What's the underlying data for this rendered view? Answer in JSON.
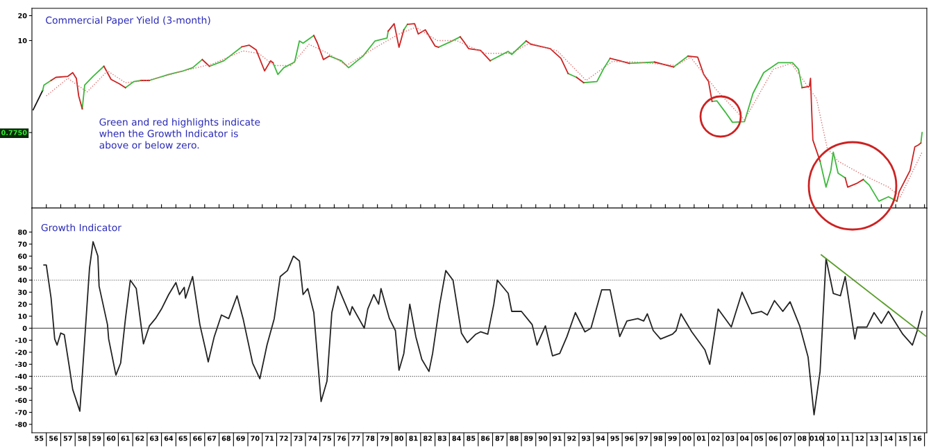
{
  "chart_data": [
    {
      "type": "line",
      "log": true,
      "tick_labels": "y",
      "line_style": "solid",
      "xlim": [
        "1955",
        "2017-03"
      ],
      "xticks": [
        {
          "value": "1956",
          "label": null
        },
        {
          "value": "1957",
          "label": null
        },
        {
          "value": "1958",
          "label": null
        },
        {
          "value": "1959",
          "label": null
        },
        {
          "value": "1960",
          "label": null
        },
        {
          "value": "1961",
          "label": null
        },
        {
          "value": "1962",
          "label": null
        },
        {
          "value": "1963",
          "label": null
        },
        {
          "value": "1964",
          "label": null
        },
        {
          "value": "1965",
          "label": null
        },
        {
          "value": "1966",
          "label": null
        },
        {
          "value": "1967",
          "label": null
        },
        {
          "value": "1968",
          "label": null
        },
        {
          "value": "1969",
          "label": null
        },
        {
          "value": "1970",
          "label": null
        },
        {
          "value": "1971",
          "label": null
        },
        {
          "value": "1972",
          "label": null
        },
        {
          "value": "1973",
          "label": null
        },
        {
          "value": "1974",
          "label": null
        },
        {
          "value": "1975",
          "label": null
        },
        {
          "value": "1976",
          "label": null
        },
        {
          "value": "1977",
          "label": null
        },
        {
          "value": "1978",
          "label": null
        },
        {
          "value": "1979",
          "label": null
        },
        {
          "value": "1980",
          "label": null
        },
        {
          "value": "1981",
          "label": null
        },
        {
          "value": "1982",
          "label": null
        },
        {
          "value": "1983",
          "label": null
        },
        {
          "value": "1984",
          "label": null
        },
        {
          "value": "1985",
          "label": null
        },
        {
          "value": "1986",
          "label": null
        },
        {
          "value": "1987",
          "label": null
        },
        {
          "value": "1988",
          "label": null
        },
        {
          "value": "1989",
          "label": null
        },
        {
          "value": "1990",
          "label": null
        },
        {
          "value": "1991",
          "label": null
        },
        {
          "value": "1992",
          "label": null
        },
        {
          "value": "1993",
          "label": null
        },
        {
          "value": "1994",
          "label": null
        },
        {
          "value": "1995",
          "label": null
        },
        {
          "value": "1996",
          "label": null
        },
        {
          "value": "1997",
          "label": null
        },
        {
          "value": "1998",
          "label": null
        },
        {
          "value": "1999",
          "label": null
        },
        {
          "value": "2000",
          "label": null
        },
        {
          "value": "2001",
          "label": null
        },
        {
          "value": "2002",
          "label": null
        },
        {
          "value": "2003",
          "label": null
        },
        {
          "value": "2004",
          "label": null
        },
        {
          "value": "2005",
          "label": null
        },
        {
          "value": "2006",
          "label": null
        },
        {
          "value": "2007",
          "label": null
        },
        {
          "value": "2008",
          "label": null
        },
        {
          "value": "2009",
          "label": null
        },
        {
          "value": "2010",
          "label": null
        },
        {
          "value": "2011",
          "label": null
        },
        {
          "value": "2012",
          "label": null
        },
        {
          "value": "2013",
          "label": null
        },
        {
          "value": "2014",
          "label": null
        },
        {
          "value": "2015",
          "label": null
        },
        {
          "value": "2016",
          "label": null
        },
        {
          "value": "2017",
          "label": null
        }
      ],
      "ylim": [
        0.095,
        24.5
      ],
      "yticks": [
        20,
        10,
        {
          "value": 0.775,
          "label": "0.7750"
        }
      ],
      "annotations": [
        "Commercial Paper Yield (3-month)",
        "Green and red highlights indicate\nwhen the Growth Indicator is\nabove or below zero."
      ],
      "series": [
        {
          "color": "#111111",
          "x": [
            "1955-02",
            "1955-10"
          ],
          "values": [
            1.46,
            2.5
          ]
        },
        {
          "color": "#3cb83c",
          "x": [
            "1955-10",
            "1955-11",
            "1956-05",
            null,
            "1958-07",
            "1958-09",
            "1959-04",
            "1960-01",
            null,
            "1961-07",
            "1962-02",
            "1962-08",
            null,
            "1963-03",
            "1964-07",
            "1965-07",
            "1966-03",
            "1966-11",
            null,
            "1967-05",
            "1968-05",
            "1969-08",
            null,
            "1971-10",
            "1972-02",
            "1972-07",
            "1973-04",
            "1973-08",
            "1973-11",
            "1974-08",
            null,
            "1975-09",
            "1976-07",
            "1977-01",
            "1978-01",
            "1978-11",
            "1979-09",
            "1979-10",
            null,
            "1980-11",
            "1981-02",
            null,
            "1983-04",
            "1984-02",
            "1984-10",
            null,
            "1986-11",
            "1988-02",
            "1988-05",
            "1989-05",
            null,
            "1992-04",
            "1992-11",
            null,
            "1993-05",
            "1994-04",
            "1994-10",
            "1995-03",
            null,
            "1996-07",
            "1998-04",
            null,
            "1999-08",
            "2000-08",
            null,
            "2002-04",
            "2002-08",
            "2003-03",
            "2003-09",
            "2004-07",
            "2005-02",
            "2005-11",
            "2006-11",
            "2007-11",
            "2008-04",
            "2008-07",
            null,
            "2009-10",
            "2010-03",
            "2010-07",
            "2010-09",
            "2011-01",
            "2011-07",
            null,
            "2012-10",
            "2013-03",
            "2013-11",
            "2014-07",
            "2015-02",
            null,
            "2016-10",
            "2016-11"
          ],
          "values": [
            2.5,
            2.9,
            3.3,
            null,
            1.5,
            2.9,
            3.7,
            4.9,
            null,
            2.7,
            3.2,
            3.3,
            null,
            3.3,
            3.9,
            4.3,
            4.7,
            5.9,
            null,
            4.9,
            5.7,
            8.4,
            null,
            5.4,
            3.9,
            4.7,
            5.5,
            9.9,
            9.3,
            11.5,
            null,
            6.5,
            5.7,
            4.7,
            6.5,
            9.9,
            10.7,
            13,
            null,
            13.5,
            15.7,
            null,
            8.3,
            9.7,
            11.1,
            null,
            5.7,
            7.4,
            6.8,
            9.9,
            null,
            4.0,
            3.6,
            null,
            3.1,
            3.2,
            4.7,
            6.1,
            null,
            5.3,
            5.5,
            null,
            4.8,
            6.5,
            null,
            1.84,
            1.87,
            1.37,
            1.03,
            1.05,
            2.3,
            4.1,
            5.4,
            5.4,
            4.5,
            2.7,
            null,
            0.35,
            0.17,
            0.27,
            0.45,
            0.25,
            0.22,
            null,
            0.21,
            0.18,
            0.115,
            0.13,
            0.115,
            null,
            0.58,
            0.775
          ]
        },
        {
          "color": "#cc2222",
          "x": [
            "1956-05",
            "1956-09",
            "1957-07",
            "1957-11",
            "1958-02",
            "1958-04",
            "1958-07",
            null,
            "1960-01",
            "1960-07",
            "1961-02",
            "1961-07",
            null,
            "1962-08",
            "1963-03",
            null,
            "1966-11",
            "1967-05",
            null,
            "1969-08",
            "1970-02",
            "1970-08",
            "1971-03",
            "1971-08",
            "1971-10",
            null,
            "1974-08",
            "1974-11",
            "1975-04",
            "1975-09",
            null,
            "1979-10",
            "1980-03",
            "1980-07",
            "1980-11",
            null,
            "1981-02",
            "1981-08",
            "1981-11",
            "1982-05",
            "1983-01",
            "1983-04",
            null,
            "1984-10",
            "1985-01",
            "1985-05",
            "1986-03",
            "1986-11",
            null,
            "1989-05",
            "1989-09",
            "1991-01",
            "1991-10",
            "1992-04",
            null,
            "1992-11",
            "1993-05",
            null,
            "1995-03",
            "1995-11",
            "1996-07",
            null,
            "1998-04",
            "1999-08",
            null,
            "2000-08",
            "2001-04",
            "2001-09",
            "2002-01",
            "2002-04",
            null,
            "2008-07",
            "2009-01",
            "2009-02",
            "2009-03",
            "2009-04",
            "2009-10",
            null,
            "2011-07",
            "2011-09",
            "2012-05",
            "2012-10",
            null,
            "2015-02",
            "2015-04",
            "2016-01",
            "2016-05",
            "2016-08",
            "2016-10"
          ],
          "values": [
            3.3,
            3.6,
            3.7,
            4.1,
            3.5,
            2.15,
            1.5,
            null,
            4.9,
            3.4,
            3.0,
            2.7,
            null,
            3.3,
            3.3,
            null,
            5.9,
            4.9,
            null,
            8.4,
            8.8,
            7.7,
            4.3,
            5.7,
            5.4,
            null,
            11.5,
            9.3,
            5.9,
            6.5,
            null,
            13,
            16,
            8.3,
            13.5,
            null,
            15.7,
            16,
            12,
            13.5,
            8.6,
            8.3,
            null,
            11.1,
            9.7,
            8.0,
            7.6,
            5.7,
            null,
            9.9,
            9.0,
            8.0,
            6.1,
            4.0,
            null,
            3.6,
            3.1,
            null,
            6.1,
            5.7,
            5.3,
            null,
            5.5,
            4.8,
            null,
            6.5,
            6.3,
            3.9,
            3.2,
            1.84,
            null,
            2.7,
            2.8,
            3.5,
            1.46,
            0.63,
            0.35,
            null,
            0.22,
            0.17,
            0.19,
            0.21,
            null,
            0.115,
            0.15,
            0.27,
            0.52,
            0.55,
            0.58
          ]
        },
        {
          "color": "#e07070",
          "line_style": "dotted",
          "x": [
            "1956-01",
            "1957-07",
            "1958-11",
            "1960-04",
            "1961-07",
            "1963-01",
            "1966-01",
            "1967-07",
            "1969-09",
            "1970-10",
            "1971-11",
            "1973-01",
            "1974-04",
            "1975-08",
            "1976-11",
            "1979-01",
            "1980-07",
            "1981-09",
            "1983-03",
            "1984-07",
            "1986-07",
            "1988-04",
            "1989-08",
            "1991-07",
            "1993-07",
            "1995-05",
            "1997-01",
            "1999-10",
            "2000-10",
            "2002-08",
            "2004-07",
            "2006-07",
            "2007-10",
            "2009-07",
            "2010-04",
            "2011-01",
            "2012-07",
            "2014-07",
            "2015-05",
            "2016-11"
          ],
          "values": [
            2.15,
            3.5,
            2.4,
            4.3,
            3.1,
            3.3,
            4.5,
            5.2,
            7.5,
            7.0,
            5.0,
            5.0,
            9.0,
            7.0,
            5.0,
            8.5,
            12,
            14.5,
            10,
            10,
            7,
            7,
            9.3,
            7.5,
            3.3,
            5.6,
            5.5,
            5.0,
            6.3,
            2.5,
            1.1,
            4.5,
            5.3,
            2.0,
            0.5,
            0.35,
            0.25,
            0.17,
            0.13,
            0.45
          ]
        }
      ]
    },
    {
      "type": "line",
      "line_style": "solid",
      "xlim": [
        "1955",
        "2017-03"
      ],
      "xticks": [
        {
          "value": "1955-07",
          "label": "55"
        },
        {
          "value": "1956",
          "label": null
        },
        {
          "value": "1956-07",
          "label": "56"
        },
        {
          "value": "1957",
          "label": null
        },
        {
          "value": "1957-07",
          "label": "57"
        },
        {
          "value": "1958",
          "label": null
        },
        {
          "value": "1958-07",
          "label": "58"
        },
        {
          "value": "1959",
          "label": null
        },
        {
          "value": "1959-07",
          "label": "59"
        },
        {
          "value": "1960",
          "label": null
        },
        {
          "value": "1960-07",
          "label": "60"
        },
        {
          "value": "1961",
          "label": null
        },
        {
          "value": "1961-07",
          "label": "61"
        },
        {
          "value": "1962",
          "label": null
        },
        {
          "value": "1962-07",
          "label": "62"
        },
        {
          "value": "1963",
          "label": null
        },
        {
          "value": "1963-07",
          "label": "63"
        },
        {
          "value": "1964",
          "label": null
        },
        {
          "value": "1964-07",
          "label": "64"
        },
        {
          "value": "1965",
          "label": null
        },
        {
          "value": "1965-07",
          "label": "65"
        },
        {
          "value": "1966",
          "label": null
        },
        {
          "value": "1966-07",
          "label": "66"
        },
        {
          "value": "1967",
          "label": null
        },
        {
          "value": "1967-07",
          "label": "67"
        },
        {
          "value": "1968",
          "label": null
        },
        {
          "value": "1968-07",
          "label": "68"
        },
        {
          "value": "1969",
          "label": null
        },
        {
          "value": "1969-07",
          "label": "69"
        },
        {
          "value": "1970",
          "label": null
        },
        {
          "value": "1970-07",
          "label": "70"
        },
        {
          "value": "1971",
          "label": null
        },
        {
          "value": "1971-07",
          "label": "71"
        },
        {
          "value": "1972",
          "label": null
        },
        {
          "value": "1972-07",
          "label": "72"
        },
        {
          "value": "1973",
          "label": null
        },
        {
          "value": "1973-07",
          "label": "73"
        },
        {
          "value": "1974",
          "label": null
        },
        {
          "value": "1974-07",
          "label": "74"
        },
        {
          "value": "1975",
          "label": null
        },
        {
          "value": "1975-07",
          "label": "75"
        },
        {
          "value": "1976",
          "label": null
        },
        {
          "value": "1976-07",
          "label": "76"
        },
        {
          "value": "1977",
          "label": null
        },
        {
          "value": "1977-07",
          "label": "77"
        },
        {
          "value": "1978",
          "label": null
        },
        {
          "value": "1978-07",
          "label": "78"
        },
        {
          "value": "1979",
          "label": null
        },
        {
          "value": "1979-07",
          "label": "79"
        },
        {
          "value": "1980",
          "label": null
        },
        {
          "value": "1980-07",
          "label": "80"
        },
        {
          "value": "1981",
          "label": null
        },
        {
          "value": "1981-07",
          "label": "81"
        },
        {
          "value": "1982",
          "label": null
        },
        {
          "value": "1982-07",
          "label": "82"
        },
        {
          "value": "1983",
          "label": null
        },
        {
          "value": "1983-07",
          "label": "83"
        },
        {
          "value": "1984",
          "label": null
        },
        {
          "value": "1984-07",
          "label": "84"
        },
        {
          "value": "1985",
          "label": null
        },
        {
          "value": "1985-07",
          "label": "85"
        },
        {
          "value": "1986",
          "label": null
        },
        {
          "value": "1986-07",
          "label": "86"
        },
        {
          "value": "1987",
          "label": null
        },
        {
          "value": "1987-07",
          "label": "87"
        },
        {
          "value": "1988",
          "label": null
        },
        {
          "value": "1988-07",
          "label": "88"
        },
        {
          "value": "1989",
          "label": null
        },
        {
          "value": "1989-07",
          "label": "89"
        },
        {
          "value": "1990",
          "label": null
        },
        {
          "value": "1990-07",
          "label": "90"
        },
        {
          "value": "1991",
          "label": null
        },
        {
          "value": "1991-07",
          "label": "91"
        },
        {
          "value": "1992",
          "label": null
        },
        {
          "value": "1992-07",
          "label": "92"
        },
        {
          "value": "1993",
          "label": null
        },
        {
          "value": "1993-07",
          "label": "93"
        },
        {
          "value": "1994",
          "label": null
        },
        {
          "value": "1994-07",
          "label": "94"
        },
        {
          "value": "1995",
          "label": null
        },
        {
          "value": "1995-07",
          "label": "95"
        },
        {
          "value": "1996",
          "label": null
        },
        {
          "value": "1996-07",
          "label": "96"
        },
        {
          "value": "1997",
          "label": null
        },
        {
          "value": "1997-07",
          "label": "97"
        },
        {
          "value": "1998",
          "label": null
        },
        {
          "value": "1998-07",
          "label": "98"
        },
        {
          "value": "1999",
          "label": null
        },
        {
          "value": "1999-07",
          "label": "99"
        },
        {
          "value": "2000",
          "label": null
        },
        {
          "value": "2000-07",
          "label": "00"
        },
        {
          "value": "2001",
          "label": null
        },
        {
          "value": "2001-07",
          "label": "01"
        },
        {
          "value": "2002",
          "label": null
        },
        {
          "value": "2002-07",
          "label": "02"
        },
        {
          "value": "2003",
          "label": null
        },
        {
          "value": "2003-07",
          "label": "03"
        },
        {
          "value": "2004",
          "label": null
        },
        {
          "value": "2004-07",
          "label": "04"
        },
        {
          "value": "2005",
          "label": null
        },
        {
          "value": "2005-07",
          "label": "05"
        },
        {
          "value": "2006",
          "label": null
        },
        {
          "value": "2006-07",
          "label": "06"
        },
        {
          "value": "2007",
          "label": null
        },
        {
          "value": "2007-07",
          "label": "07"
        },
        {
          "value": "2008",
          "label": null
        },
        {
          "value": "2008-07",
          "label": "08"
        },
        {
          "value": "2009",
          "label": null
        },
        {
          "value": "2009-07",
          "label": "010"
        },
        {
          "value": "2010",
          "label": null
        },
        {
          "value": "2010-07",
          "label": "10"
        },
        {
          "value": "2011",
          "label": null
        },
        {
          "value": "2011-07",
          "label": "11"
        },
        {
          "value": "2012",
          "label": null
        },
        {
          "value": "2012-07",
          "label": "12"
        },
        {
          "value": "2013",
          "label": null
        },
        {
          "value": "2013-07",
          "label": "13"
        },
        {
          "value": "2014",
          "label": null
        },
        {
          "value": "2014-07",
          "label": "14"
        },
        {
          "value": "2015",
          "label": null
        },
        {
          "value": "2015-07",
          "label": "15"
        },
        {
          "value": "2016",
          "label": null
        },
        {
          "value": "2016-07",
          "label": "16"
        },
        {
          "value": "2017",
          "label": null
        }
      ],
      "ylim": [
        -87,
        100
      ],
      "yticks": [
        -80,
        -70,
        -60,
        -50,
        -40,
        -30,
        -20,
        -10,
        0,
        10,
        20,
        30,
        40,
        50,
        60,
        70,
        80
      ],
      "annotations": [
        "Growth Indicator"
      ],
      "ref_lines": [
        {
          "axis": "y",
          "value": 40,
          "color": "#444444",
          "line_style": "dotted"
        },
        {
          "axis": "y",
          "value": -40,
          "color": "#444444",
          "line_style": "dotted"
        },
        {
          "axis": "y",
          "value": 0,
          "color": "#333333",
          "line_style": "solid"
        }
      ],
      "series": [
        {
          "color": "#222222",
          "x": [
            "1955-11",
            "1956-01",
            "1956-05",
            "1956-08",
            "1956-10",
            "1957-01",
            "1957-04",
            "1957-08",
            "1957-11",
            "1958-05",
            "1959-01",
            "1959-04",
            "1959-08",
            "1959-09",
            "1960-04",
            "1960-05",
            "1960-11",
            "1961-03",
            "1961-07",
            "1961-11",
            "1962-04",
            "1962-10",
            "1963-03",
            "1963-08",
            "1964-01",
            "1964-07",
            "1965-01",
            "1965-04",
            "1965-08",
            "1965-09",
            "1966-03",
            "1966-09",
            "1967-02",
            "1967-04",
            "1967-09",
            "1968-03",
            "1968-09",
            "1969-04",
            "1969-09",
            "1970-05",
            "1970-11",
            "1971-05",
            "1971-11",
            "1972-04",
            "1972-10",
            "1973-03",
            "1973-08",
            "1973-11",
            "1974-03",
            "1974-08",
            "1975-02",
            "1975-07",
            "1975-11",
            "1976-04",
            "1976-09",
            "1977-02",
            "1977-04",
            "1978-02",
            "1978-05",
            "1978-10",
            "1979-02",
            "1979-04",
            "1979-11",
            "1980-04",
            "1980-07",
            "1980-11",
            "1981-04",
            "1981-09",
            "1982-02",
            "1982-08",
            "1982-11",
            "1983-05",
            "1983-10",
            "1984-04",
            "1984-11",
            "1985-04",
            "1985-11",
            "1986-03",
            "1986-09",
            "1987-02",
            "1987-05",
            "1988-02",
            "1988-05",
            "1989-01",
            "1989-10",
            "1990-02",
            "1990-09",
            "1991-03",
            "1991-09",
            "1992-03",
            "1992-10",
            "1993-06",
            "1993-11",
            "1994-08",
            "1995-03",
            "1995-11",
            "1996-05",
            "1997-02",
            "1997-07",
            "1997-10",
            "1998-03",
            "1998-09",
            "1999-07",
            "1999-10",
            "2000-02",
            "2000-11",
            "2001-10",
            "2002-02",
            "2002-09",
            "2003-08",
            "2004-05",
            "2005-01",
            "2005-09",
            "2006-02",
            "2006-08",
            "2007-03",
            "2007-09",
            "2008-05",
            "2008-12",
            "2009-05",
            "2009-10",
            "2010-03",
            "2010-09",
            "2011-03",
            "2011-07",
            "2012-03",
            "2012-05",
            "2013-01",
            "2013-07",
            "2014-01",
            "2014-07",
            "2015-07",
            "2016-03",
            "2016-07",
            "2016-11"
          ],
          "values": [
            52.6,
            52.6,
            25,
            -9,
            -14,
            -4,
            -5.4,
            -31,
            -51,
            -69,
            50,
            72,
            60,
            35,
            3,
            -9,
            -39,
            -29,
            8,
            40,
            33,
            -13,
            2,
            8,
            16,
            28,
            38,
            28,
            34,
            25,
            43,
            3,
            -19,
            -28,
            -7,
            11,
            8,
            27,
            8,
            -29,
            -42,
            -14,
            8,
            43,
            48,
            60,
            56,
            28,
            33,
            13,
            -61,
            -44,
            13,
            35,
            23,
            11,
            18,
            0,
            16,
            28,
            20,
            33,
            8,
            -2,
            -35,
            -21,
            20,
            -7,
            -26,
            -36,
            -21,
            20,
            48,
            40,
            -4,
            -12,
            -5,
            -3,
            -5,
            20,
            40,
            29,
            14,
            14,
            3,
            -14,
            2,
            -23,
            -21,
            -7,
            13,
            -3,
            0,
            32,
            32,
            -7,
            6,
            8,
            6,
            12,
            -2,
            -9,
            -5,
            -2,
            12,
            -3,
            -18,
            -30,
            16,
            1,
            30,
            12,
            14,
            11,
            23,
            14,
            22,
            2,
            -24,
            -72,
            -36,
            58,
            29,
            27,
            43,
            -9,
            1,
            1,
            13,
            4,
            14,
            -5,
            -14,
            -2,
            14
          ]
        },
        {
          "color": "#5a9e2a",
          "x": [
            "2009-11",
            "2017-02"
          ],
          "values": [
            61,
            -6.5
          ]
        }
      ]
    }
  ]
}
